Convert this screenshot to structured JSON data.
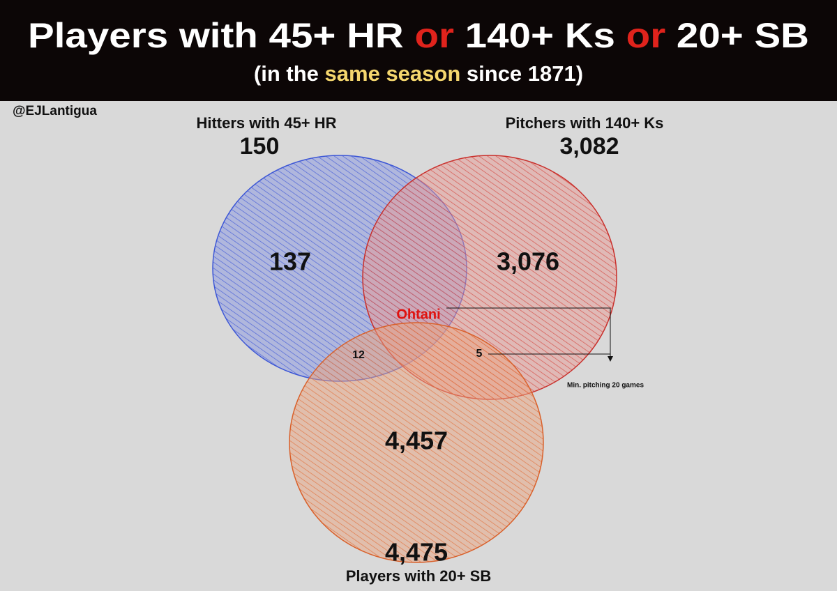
{
  "header": {
    "title": {
      "part1": "Players with 45+ HR",
      "or1": "or",
      "part2": "140+ Ks",
      "or2": "or",
      "part3": "20+ SB"
    },
    "subtitle": {
      "before": "(in the",
      "highlight": "same season",
      "after": "since 1871)"
    }
  },
  "handle": "@EJLantigua",
  "sets": [
    {
      "label": "Hitters with 45+ HR",
      "total": "150"
    },
    {
      "label": "Pitchers with 140+ Ks",
      "total": "3,082"
    },
    {
      "label": "Players with 20+ SB",
      "total": "4,475"
    }
  ],
  "regions": {
    "hitters_only": "137",
    "pitchers_only": "3,076",
    "sb_only": "4,457",
    "hitters_sb": "12",
    "pitchers_sb": "5",
    "all_three": "Ohtani"
  },
  "note": "Min. pitching 20 games"
}
